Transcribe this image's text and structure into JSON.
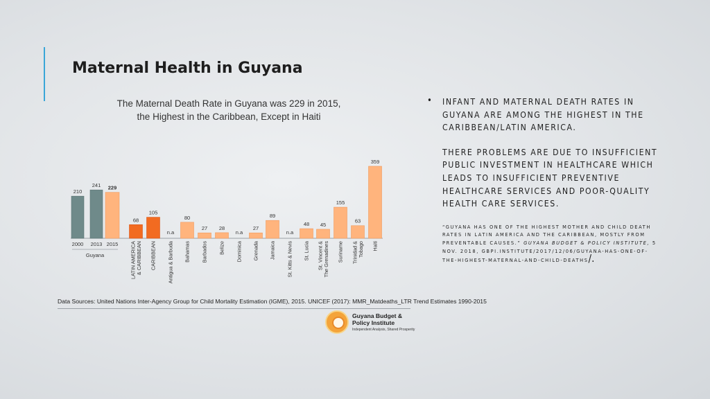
{
  "slide": {
    "title": "Maternal Health in Guyana"
  },
  "chart_title_lines": [
    "The Maternal Death Rate in Guyana was 229 in 2015,",
    "the Highest in the Caribbean, Except in Haiti"
  ],
  "right_panel": {
    "bullet_paragraph_1": "Infant and maternal death rates in Guyana are among the highest in the Caribbean/Latin America.",
    "bullet_paragraph_2": "There problems are due to insufficient public investment in healthcare which leads to insufficient preventive healthcare services and poor-quality health care services.",
    "quote_text": "“Guyana has one of the highest mother and child death rates in Latin America and the Caribbean, mostly from preventable causes.” ",
    "quote_source": "Guyana Budget & Policy Institute,",
    "quote_date": " 5 Nov. 2018,",
    "quote_url": " gbpi.institute/2017/12/06/guyana-has-one-of-the-highest-maternal-and-child-deaths",
    "quote_end": "/."
  },
  "source_note": "Data Sources: United Nations Inter-Agency Group for Child Mortality Estimation (IGME), 2015. UNICEF (2017): MMR_Matdeaths_LTR Trend Estimates 1990-2015",
  "logo": {
    "name_line1": "Guyana Budget &",
    "name_line2": "Policy Institute",
    "tagline": "Independent Analysis, Shared Prosperity"
  },
  "colors": {
    "guyana_gray": "#6f8a8a",
    "region_orange": "#f26b21",
    "country_peach": "#ffb47d",
    "accent_blue": "#3aa6d8"
  },
  "chart_data": {
    "type": "bar",
    "title": "The Maternal Death Rate in Guyana was 229 in 2015, the Highest in the Caribbean, Except in Haiti",
    "categories": [
      "2000",
      "2013",
      "2015",
      "LATIN AMERICA & CARIBBEAN",
      "CARIBBEAN",
      "Antigua & Barbuda",
      "Bahamas",
      "Barbados",
      "Belize",
      "Dominica",
      "Grenada",
      "Jamaica",
      "St. Kitts & Nevis",
      "St. Lucia",
      "St. Vincent & The Grenadines",
      "Suriname",
      "Trinidad & Tobago",
      "Haiti"
    ],
    "category_lines": [
      [
        "2000"
      ],
      [
        "2013"
      ],
      [
        "2015"
      ],
      [
        "LATIN AMERICA",
        "& CARIBBEAN"
      ],
      [
        "CARIBBEAN"
      ],
      [
        "Antigua & Barbuda"
      ],
      [
        "Bahamas"
      ],
      [
        "Barbados"
      ],
      [
        "Belize"
      ],
      [
        "Dominica"
      ],
      [
        "Grenada"
      ],
      [
        "Jamaica"
      ],
      [
        "St. Kitts & Nevis"
      ],
      [
        "St. Lucia"
      ],
      [
        "St. Vincent &",
        "The Grenadines"
      ],
      [
        "Suriname"
      ],
      [
        "Trinidad &",
        "Tobago"
      ],
      [
        "Haiti"
      ]
    ],
    "values": [
      210,
      241,
      229,
      68,
      105,
      null,
      80,
      27,
      28,
      null,
      27,
      89,
      null,
      48,
      45,
      155,
      63,
      359
    ],
    "value_labels": [
      "210",
      "241",
      "229",
      "68",
      "105",
      "n.a",
      "80",
      "27",
      "28",
      "n.a",
      "27",
      "89",
      "n.a",
      "48",
      "45",
      "155",
      "63",
      "359"
    ],
    "bar_groups": [
      "guyana",
      "guyana",
      "guyana-2015",
      "region",
      "region",
      "country",
      "country",
      "country",
      "country",
      "country",
      "country",
      "country",
      "country",
      "country",
      "country",
      "country",
      "country",
      "country"
    ],
    "group_label": "Guyana",
    "ylim": [
      0,
      359
    ],
    "grid": false,
    "legend": "none"
  }
}
